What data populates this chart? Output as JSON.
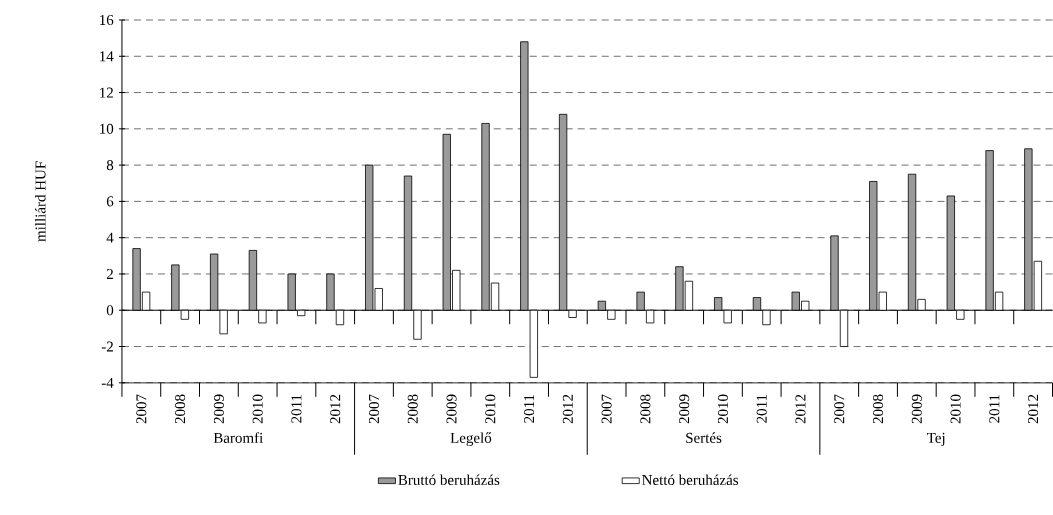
{
  "chart_data": {
    "type": "bar",
    "ylabel": "milliárd HUF",
    "categories": [
      "2007",
      "2008",
      "2009",
      "2010",
      "2011",
      "2012",
      "2007",
      "2008",
      "2009",
      "2010",
      "2011",
      "2012",
      "2007",
      "2008",
      "2009",
      "2010",
      "2011",
      "2012",
      "2007",
      "2008",
      "2009",
      "2010",
      "2011",
      "2012"
    ],
    "series": [
      {
        "name": "Bruttó beruházás",
        "color": "#9a9a9a",
        "values": [
          3.4,
          2.5,
          3.1,
          3.3,
          2.0,
          2.0,
          8.0,
          7.4,
          9.7,
          10.3,
          14.8,
          10.8,
          0.5,
          1.0,
          2.4,
          0.7,
          0.7,
          1.0,
          4.1,
          7.1,
          7.5,
          6.3,
          8.8,
          8.9
        ]
      },
      {
        "name": "Nettó beruházás",
        "color": "#ffffff",
        "values": [
          1.0,
          -0.5,
          -1.3,
          -0.7,
          -0.3,
          -0.8,
          1.2,
          -1.6,
          2.2,
          1.5,
          -3.7,
          -0.4,
          -0.5,
          -0.7,
          1.6,
          -0.7,
          -0.8,
          0.5,
          -2.0,
          1.0,
          0.6,
          -0.5,
          1.0,
          2.7
        ]
      }
    ],
    "annotations": [
      "Baromfi",
      "Legelő",
      "Sertés",
      "Tej"
    ],
    "ylim": [
      -4,
      16
    ],
    "yticks": [
      -4,
      -2,
      0,
      2,
      4,
      6,
      8,
      10,
      12,
      14,
      16
    ],
    "grid": "y",
    "legend": "bottom"
  }
}
